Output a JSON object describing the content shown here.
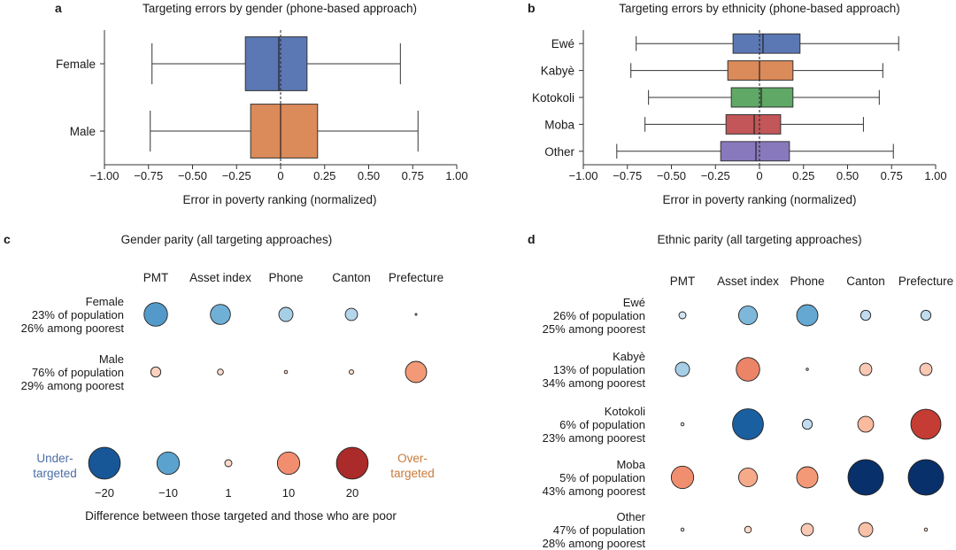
{
  "panels": {
    "a": {
      "letter": "a",
      "chart_data": {
        "type": "boxplot",
        "orientation": "horizontal",
        "title": "Targeting errors by gender (phone-based approach)",
        "xlabel": "Error in poverty ranking (normalized)",
        "xlim": [
          -1.0,
          1.0
        ],
        "xticks": [
          -1.0,
          -0.75,
          -0.5,
          -0.25,
          0,
          0.25,
          0.5,
          0.75,
          1.0
        ],
        "xtick_labels": [
          "−1.00",
          "−0.75",
          "−0.50",
          "−0.25",
          "0",
          "0.25",
          "0.50",
          "0.75",
          "1.00"
        ],
        "categories": [
          "Female",
          "Male"
        ],
        "boxes": [
          {
            "label": "Female",
            "whisker_low": -0.73,
            "q1": -0.2,
            "median": -0.01,
            "q3": 0.15,
            "whisker_high": 0.68,
            "color": "#5b78b4"
          },
          {
            "label": "Male",
            "whisker_low": -0.74,
            "q1": -0.17,
            "median": 0.0,
            "q3": 0.21,
            "whisker_high": 0.78,
            "color": "#db8a59"
          }
        ]
      }
    },
    "b": {
      "letter": "b",
      "chart_data": {
        "type": "boxplot",
        "orientation": "horizontal",
        "title": "Targeting errors by ethnicity (phone-based approach)",
        "xlabel": "Error in poverty ranking (normalized)",
        "xlim": [
          -1.0,
          1.0
        ],
        "xticks": [
          -1.0,
          -0.75,
          -0.5,
          -0.25,
          0,
          0.25,
          0.5,
          0.75,
          1.0
        ],
        "xtick_labels": [
          "−1.00",
          "−0.75",
          "−0.50",
          "−0.25",
          "0",
          "0.25",
          "0.50",
          "0.75",
          "1.00"
        ],
        "categories": [
          "Ewé",
          "Kabyè",
          "Kotokoli",
          "Moba",
          "Other"
        ],
        "boxes": [
          {
            "label": "Ewé",
            "whisker_low": -0.7,
            "q1": -0.15,
            "median": 0.02,
            "q3": 0.23,
            "whisker_high": 0.79,
            "color": "#5b78b4"
          },
          {
            "label": "Kabyè",
            "whisker_low": -0.73,
            "q1": -0.18,
            "median": 0.0,
            "q3": 0.19,
            "whisker_high": 0.7,
            "color": "#db8a59"
          },
          {
            "label": "Kotokoli",
            "whisker_low": -0.63,
            "q1": -0.16,
            "median": 0.01,
            "q3": 0.19,
            "whisker_high": 0.68,
            "color": "#5fa865"
          },
          {
            "label": "Moba",
            "whisker_low": -0.65,
            "q1": -0.19,
            "median": -0.03,
            "q3": 0.12,
            "whisker_high": 0.59,
            "color": "#c25658"
          },
          {
            "label": "Other",
            "whisker_low": -0.81,
            "q1": -0.22,
            "median": -0.02,
            "q3": 0.17,
            "whisker_high": 0.76,
            "color": "#8878bc"
          }
        ]
      }
    },
    "c": {
      "letter": "c",
      "chart_data": {
        "type": "bubble-grid",
        "title": "Gender parity (all targeting approaches)",
        "columns": [
          "PMT",
          "Asset index",
          "Phone",
          "Canton",
          "Prefecture"
        ],
        "rows": [
          {
            "name": "Female",
            "population": "23% of population",
            "poorest": "26% among poorest"
          },
          {
            "name": "Male",
            "population": "76% of population",
            "poorest": "29% among poorest"
          }
        ],
        "values": [
          [
            -11,
            -8,
            -4,
            -3,
            0
          ],
          [
            2,
            0.7,
            0.2,
            0.4,
            9
          ]
        ],
        "legend": {
          "under_label": "Under-\ntargeted",
          "over_label": "Over-\ntargeted",
          "values": [
            -20,
            -10,
            1,
            10,
            20
          ],
          "value_labels": [
            "−20",
            "−10",
            "1",
            "10",
            "20"
          ],
          "caption": "Difference between those targeted and those who are poor",
          "under_color": "#4b6ea6",
          "over_color": "#c97a3a"
        }
      }
    },
    "d": {
      "letter": "d",
      "chart_data": {
        "type": "bubble-grid",
        "title": "Ethnic parity (all targeting approaches)",
        "columns": [
          "PMT",
          "Asset index",
          "Phone",
          "Canton",
          "Prefecture"
        ],
        "rows": [
          {
            "name": "Ewé",
            "population": "26% of population",
            "poorest": "25% among poorest"
          },
          {
            "name": "Kabyè",
            "population": "13% of population",
            "poorest": "34% among poorest"
          },
          {
            "name": "Kotokoli",
            "population": "6% of population",
            "poorest": "23% among poorest"
          },
          {
            "name": "Moba",
            "population": "5% of population",
            "poorest": "43% among poorest"
          },
          {
            "name": "Other",
            "population": "47% of population",
            "poorest": "28% among poorest"
          }
        ],
        "values": [
          [
            -1,
            -7,
            -9,
            -2,
            -2
          ],
          [
            -4,
            11,
            0.1,
            3,
            3
          ],
          [
            0.2,
            -19,
            -2,
            5,
            18
          ],
          [
            10,
            7,
            9,
            -25,
            -25
          ],
          [
            0.2,
            0.9,
            3,
            4,
            0.2
          ]
        ]
      }
    }
  }
}
